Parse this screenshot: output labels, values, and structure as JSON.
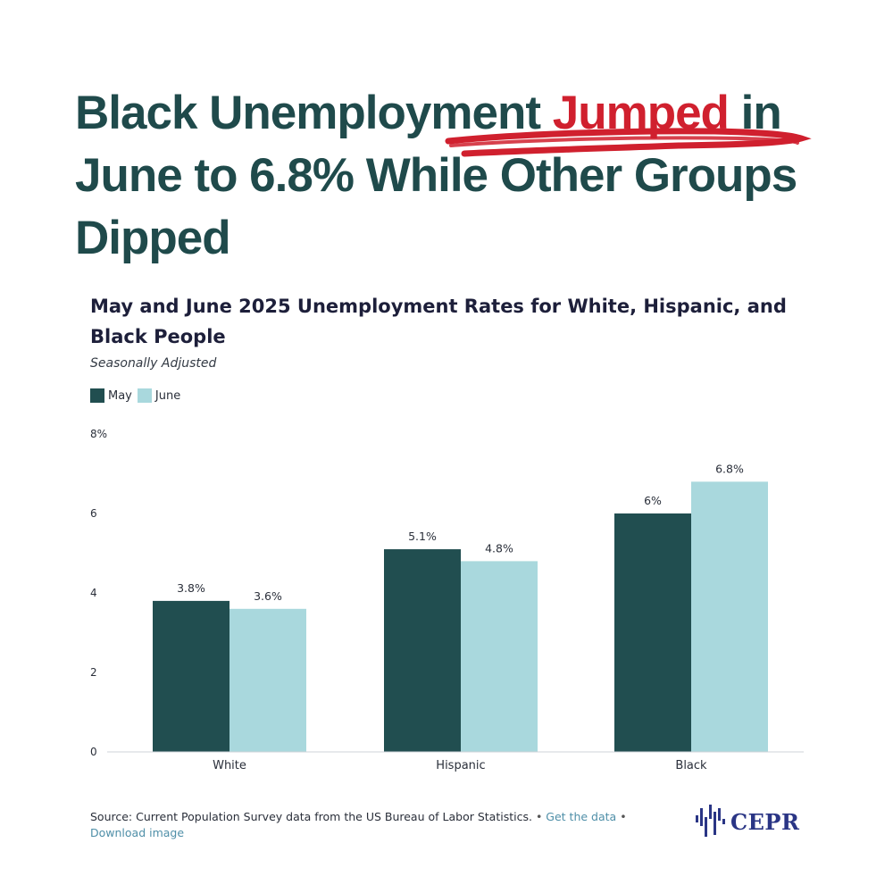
{
  "headline": {
    "before": "Black Unemployment ",
    "highlight": "Jumped",
    "after": " in June to 6.8% While Other Groups Dipped"
  },
  "colors": {
    "headline": "#1f4a4b",
    "highlight": "#d0202e",
    "may": "#214e50",
    "june": "#a9d8dd"
  },
  "chart_data": {
    "type": "bar",
    "title": "May and June 2025 Unemployment Rates for White, Hispanic, and Black People",
    "subtitle": "Seasonally Adjusted",
    "categories": [
      "White",
      "Hispanic",
      "Black"
    ],
    "series": [
      {
        "name": "May",
        "values": [
          3.8,
          5.1,
          6.0
        ],
        "labels": [
          "3.8%",
          "5.1%",
          "6%"
        ]
      },
      {
        "name": "June",
        "values": [
          3.6,
          4.8,
          6.8
        ],
        "labels": [
          "3.6%",
          "4.8%",
          "6.8%"
        ]
      }
    ],
    "y_ticks": [
      {
        "value": 0,
        "label": "0"
      },
      {
        "value": 2,
        "label": "2"
      },
      {
        "value": 4,
        "label": "4"
      },
      {
        "value": 6,
        "label": "6"
      },
      {
        "value": 8,
        "label": "8%"
      }
    ],
    "ylim": [
      0,
      8
    ],
    "xlabel": "",
    "ylabel": "",
    "grid": false,
    "legend_position": "top-left"
  },
  "footer": {
    "source_text": "Source: Current Population Survey data from the US Bureau of Labor Statistics.",
    "separator": "•",
    "get_data_link": "Get the data",
    "download_link": "Download image",
    "logo_text": "CEPR",
    "logo_icon": "cepr-bars-icon"
  }
}
